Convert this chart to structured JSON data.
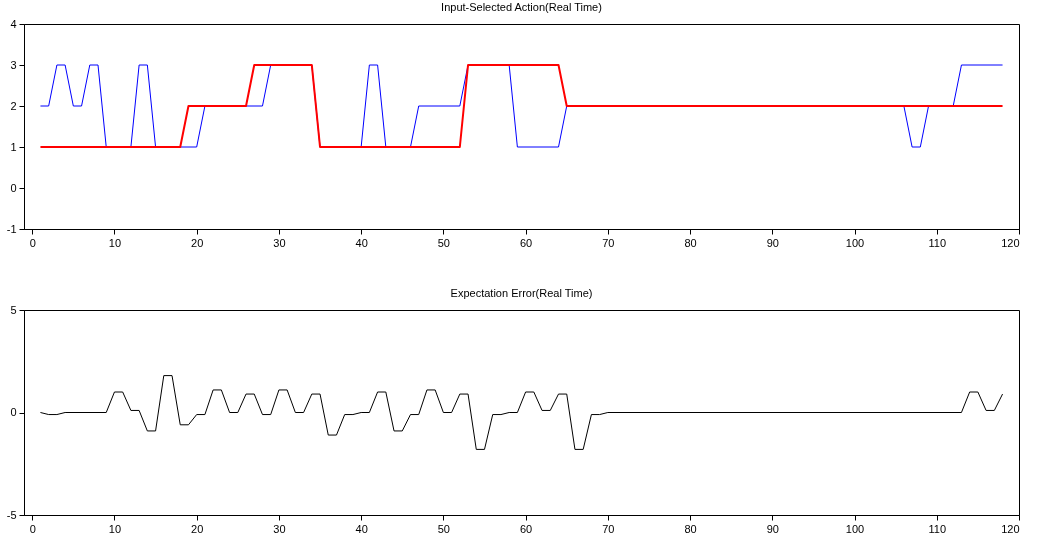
{
  "chart_data": [
    {
      "type": "line",
      "title": "Input-Selected Action(Real Time)",
      "xlim": [
        -1,
        120
      ],
      "xticks": [
        0,
        10,
        20,
        30,
        40,
        50,
        60,
        70,
        80,
        90,
        100,
        110,
        120
      ],
      "ylim": [
        -1,
        4
      ],
      "yticks": [
        -1,
        0,
        1,
        2,
        3,
        4
      ],
      "grid": false,
      "legend": false,
      "series": [
        {
          "color": "#0000ff",
          "x": [
            1,
            2,
            3,
            4,
            5,
            6,
            7,
            8,
            9,
            12,
            13,
            14,
            15,
            20,
            21,
            28,
            29,
            34,
            35,
            40,
            41,
            42,
            43,
            46,
            47,
            52,
            53,
            58,
            59,
            64,
            65,
            106,
            107,
            108,
            109,
            112,
            113,
            118
          ],
          "values": [
            2,
            2,
            3,
            3,
            2,
            2,
            3,
            3,
            1,
            1,
            3,
            3,
            1,
            1,
            2,
            2,
            3,
            3,
            1,
            1,
            3,
            3,
            1,
            1,
            2,
            2,
            3,
            3,
            1,
            1,
            2,
            2,
            1,
            1,
            2,
            2,
            3,
            3
          ]
        },
        {
          "color": "#ff0000",
          "x": [
            1,
            18,
            19,
            26,
            27,
            34,
            35,
            52,
            53,
            64,
            65,
            118
          ],
          "values": [
            1,
            1,
            2,
            2,
            3,
            3,
            1,
            1,
            3,
            3,
            2,
            2
          ]
        }
      ]
    },
    {
      "type": "line",
      "title": "Expectation Error(Real Time)",
      "xlim": [
        -1,
        120
      ],
      "xticks": [
        0,
        10,
        20,
        30,
        40,
        50,
        60,
        70,
        80,
        90,
        100,
        110,
        120
      ],
      "ylim": [
        -5,
        5
      ],
      "yticks": [
        -5,
        0,
        5
      ],
      "grid": false,
      "legend": false,
      "series": [
        {
          "color": "#000000",
          "x": [
            1,
            2,
            3,
            4,
            9,
            10,
            11,
            12,
            13,
            14,
            15,
            16,
            17,
            18,
            19,
            20,
            21,
            22,
            23,
            24,
            25,
            26,
            27,
            28,
            29,
            30,
            31,
            32,
            33,
            34,
            35,
            36,
            37,
            38,
            39,
            40,
            41,
            42,
            43,
            44,
            45,
            46,
            47,
            48,
            49,
            50,
            51,
            52,
            53,
            54,
            55,
            56,
            57,
            58,
            59,
            60,
            61,
            62,
            63,
            64,
            65,
            66,
            67,
            68,
            69,
            70,
            113,
            114,
            115,
            116,
            117,
            118
          ],
          "values": [
            0,
            -0.1,
            -0.1,
            0,
            0,
            1,
            1,
            0.1,
            0.1,
            -0.9,
            -0.9,
            1.8,
            1.8,
            -0.6,
            -0.6,
            -0.1,
            -0.1,
            1.1,
            1.1,
            0,
            0,
            0.9,
            0.9,
            -0.1,
            -0.1,
            1.1,
            1.1,
            0,
            0,
            0.9,
            0.9,
            -1.1,
            -1.1,
            -0.1,
            -0.1,
            0,
            0,
            1,
            1,
            -0.9,
            -0.9,
            -0.1,
            -0.1,
            1.1,
            1.1,
            0,
            0,
            0.9,
            0.9,
            -1.8,
            -1.8,
            -0.1,
            -0.1,
            0,
            0,
            1,
            1,
            0.1,
            0.1,
            0.9,
            0.9,
            -1.8,
            -1.8,
            -0.1,
            -0.1,
            0,
            0,
            1,
            1,
            0.1,
            0.1,
            0.9
          ]
        }
      ]
    }
  ]
}
